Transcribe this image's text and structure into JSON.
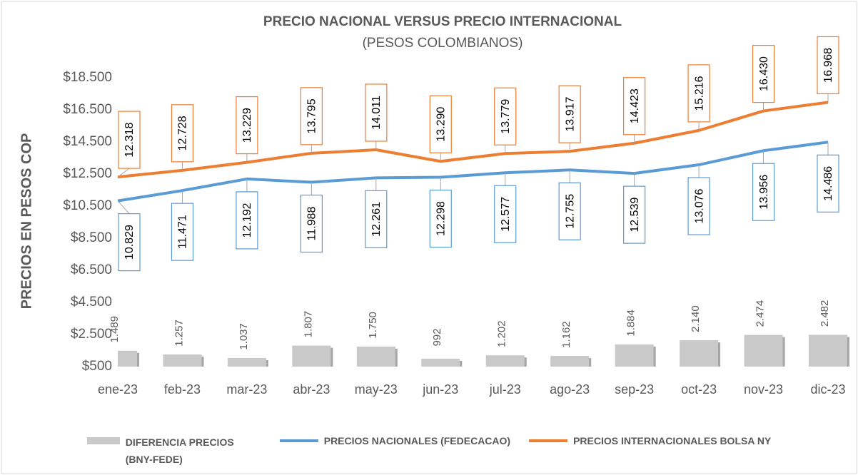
{
  "chart_data": {
    "type": "combo",
    "title": "PRECIO NACIONAL VERSUS PRECIO INTERNACIONAL",
    "subtitle": "(PESOS COLOMBIANOS)",
    "y_label": "PRECIOS EN PESOS COP",
    "categories": [
      "ene-23",
      "feb-23",
      "mar-23",
      "abr-23",
      "may-23",
      "jun-23",
      "jul-23",
      "ago-23",
      "sep-23",
      "oct-23",
      "nov-23",
      "dic-23"
    ],
    "series": [
      {
        "name": "DIFERENCIA PRECIOS (BNY-FEDE)",
        "type": "bar",
        "color": "#c9c9c9",
        "values": [
          1489,
          1257,
          1037,
          1807,
          1750,
          992,
          1202,
          1162,
          1884,
          2140,
          2474,
          2482
        ],
        "value_labels": [
          "1.489",
          "1.257",
          "1.037",
          "1.807",
          "1.750",
          "992",
          "1.202",
          "1.162",
          "1.884",
          "2.140",
          "2.474",
          "2.482"
        ]
      },
      {
        "name": "PRECIOS NACIONALES (FEDECACAO)",
        "type": "line",
        "color": "#5b9bd5",
        "values": [
          10829,
          11471,
          12192,
          11988,
          12261,
          12298,
          12577,
          12755,
          12539,
          13076,
          13956,
          14486
        ],
        "value_labels": [
          "10.829",
          "11.471",
          "12.192",
          "11.988",
          "12.261",
          "12.298",
          "12.577",
          "12.755",
          "12.539",
          "13.076",
          "13.956",
          "14.486"
        ]
      },
      {
        "name": "PRECIOS INTERNACIONALES BOLSA NY",
        "type": "line",
        "color": "#ed7d31",
        "values": [
          12318,
          12728,
          13229,
          13795,
          14011,
          13290,
          13779,
          13917,
          14423,
          15216,
          16430,
          16968
        ],
        "value_labels": [
          "12.318",
          "12.728",
          "13.229",
          "13.795",
          "14.011",
          "13.290",
          "13.779",
          "13.917",
          "14.423",
          "15.216",
          "16.430",
          "16.968"
        ]
      }
    ],
    "ylim": [
      500,
      18500
    ],
    "yticks": [
      {
        "value": 500,
        "label": "$500"
      },
      {
        "value": 2500,
        "label": "$2.500"
      },
      {
        "value": 4500,
        "label": "$4.500"
      },
      {
        "value": 6500,
        "label": "$6.500"
      },
      {
        "value": 8500,
        "label": "$8.500"
      },
      {
        "value": 10500,
        "label": "$10.500"
      },
      {
        "value": 12500,
        "label": "$12.500"
      },
      {
        "value": 14500,
        "label": "$14.500"
      },
      {
        "value": 16500,
        "label": "$16.500"
      },
      {
        "value": 18500,
        "label": "$18.500"
      }
    ],
    "legend": "bottom"
  }
}
